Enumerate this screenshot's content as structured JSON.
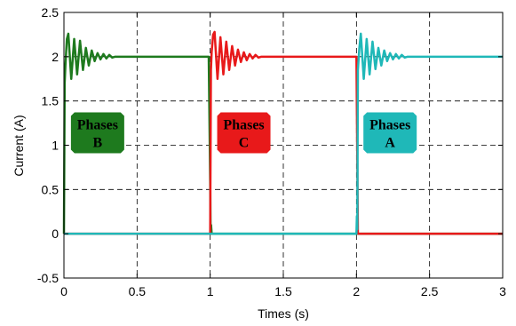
{
  "chart_data": {
    "type": "line",
    "title": "",
    "xlabel": "Times (s)",
    "ylabel": "Current (A)",
    "xlim": [
      0,
      3
    ],
    "ylim": [
      -0.5,
      2.5
    ],
    "xticks": [
      0,
      0.5,
      1,
      1.5,
      2,
      2.5,
      3
    ],
    "xtick_labels": [
      "0",
      "0.5",
      "1",
      "1.5",
      "2",
      "2.5",
      "3"
    ],
    "yticks": [
      -0.5,
      0,
      0.5,
      1,
      1.5,
      2,
      2.5
    ],
    "ytick_labels": [
      "-0.5",
      "0",
      "0.5",
      "1",
      "1.5",
      "2",
      "2.5"
    ],
    "grid": true,
    "grid_style": "dashed",
    "series": [
      {
        "name": "Phases B",
        "color": "#1e7a1e",
        "x": [
          0,
          0.005,
          0.01,
          0.02,
          0.03,
          0.05,
          0.07,
          0.09,
          0.11,
          0.13,
          0.15,
          0.17,
          0.19,
          0.21,
          0.23,
          0.25,
          0.27,
          0.29,
          0.31,
          0.33,
          0.35,
          0.4,
          0.6,
          0.8,
          0.99,
          1.0,
          1.003,
          1.006,
          1.01,
          1.02,
          1.5,
          2.0,
          2.5,
          3.0
        ],
        "y": [
          0,
          1.7,
          1.9,
          2.2,
          2.26,
          1.75,
          2.2,
          1.8,
          2.18,
          1.85,
          2.1,
          1.9,
          2.07,
          1.95,
          2.04,
          1.97,
          2.03,
          1.98,
          2.02,
          1.99,
          2.0,
          2.0,
          2.0,
          2.0,
          2.0,
          0.6,
          0.02,
          0.1,
          0.0,
          0.0,
          0.0,
          0.0,
          0.0,
          0.0
        ]
      },
      {
        "name": "Phases C",
        "color": "#e8191a",
        "x": [
          0,
          0.5,
          0.99,
          1.0,
          1.005,
          1.01,
          1.02,
          1.03,
          1.05,
          1.07,
          1.09,
          1.11,
          1.13,
          1.15,
          1.17,
          1.19,
          1.21,
          1.23,
          1.25,
          1.27,
          1.29,
          1.31,
          1.33,
          1.35,
          1.4,
          1.6,
          1.8,
          1.99,
          2.0,
          2.01,
          2.5,
          3.0
        ],
        "y": [
          0,
          0,
          0,
          0,
          1.85,
          2.05,
          2.25,
          2.28,
          1.75,
          2.22,
          1.8,
          2.17,
          1.85,
          2.12,
          1.9,
          2.08,
          1.94,
          2.05,
          1.96,
          2.03,
          1.98,
          2.02,
          1.99,
          2.0,
          2.0,
          2.0,
          2.0,
          2.0,
          2.0,
          0.0,
          0.0,
          0.0
        ]
      },
      {
        "name": "Phases A",
        "color": "#1fb8b8",
        "x": [
          0,
          0.5,
          1.0,
          1.5,
          1.99,
          2.0,
          2.003,
          2.006,
          2.01,
          2.02,
          2.03,
          2.05,
          2.07,
          2.09,
          2.11,
          2.13,
          2.15,
          2.17,
          2.19,
          2.21,
          2.23,
          2.25,
          2.27,
          2.29,
          2.31,
          2.33,
          2.35,
          2.4,
          2.6,
          2.8,
          3.0
        ],
        "y": [
          0,
          0,
          0,
          0,
          0,
          0,
          0.2,
          0.05,
          1.85,
          2.1,
          2.26,
          1.75,
          2.2,
          1.8,
          2.17,
          1.86,
          2.1,
          1.9,
          2.07,
          1.95,
          2.04,
          1.97,
          2.03,
          1.98,
          2.02,
          1.99,
          2.0,
          2.0,
          2.0,
          2.0,
          2.0
        ]
      }
    ],
    "annotations": [
      {
        "line1": "Phases",
        "line2": "B",
        "x": 0.23,
        "y": 1.14,
        "bg": "#1e7a1e"
      },
      {
        "line1": "Phases",
        "line2": "C",
        "x": 1.23,
        "y": 1.14,
        "bg": "#e8191a"
      },
      {
        "line1": "Phases",
        "line2": "A",
        "x": 2.23,
        "y": 1.14,
        "bg": "#1fb8b8"
      }
    ]
  }
}
